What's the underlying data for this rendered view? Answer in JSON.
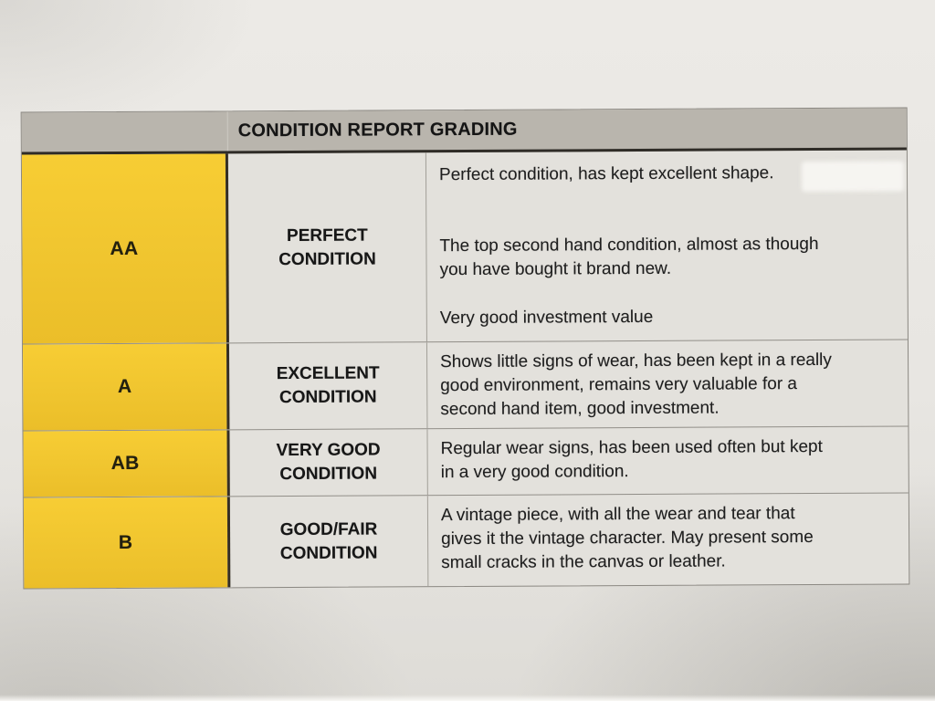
{
  "table": {
    "title": "CONDITION REPORT GRADING",
    "rows": [
      {
        "grade": "AA",
        "condition": "PERFECT\nCONDITION",
        "paragraphs": [
          "Perfect condition, has kept excellent shape.",
          "The top second hand condition, almost as though\nyou have bought it brand new.",
          "Very good investment value"
        ]
      },
      {
        "grade": "A",
        "condition": "EXCELLENT\nCONDITION",
        "paragraphs": [
          "Shows little signs of wear, has been kept in a really\ngood environment, remains very valuable for a\nsecond hand item, good investment."
        ]
      },
      {
        "grade": "AB",
        "condition": "VERY GOOD\nCONDITION",
        "paragraphs": [
          "Regular wear signs, has been used often but kept\nin a very good condition."
        ]
      },
      {
        "grade": "B",
        "condition": "GOOD/FAIR\nCONDITION",
        "paragraphs": [
          "A vintage piece, with all the wear and tear that\ngives it the vintage character. May present some\nsmall cracks in the canvas or leather."
        ]
      }
    ],
    "colors": {
      "yellow": "#F0C52F",
      "header_bg": "#B9B5AD",
      "cell_bg": "#E3E1DC",
      "page_bg": "#E9E7E3",
      "text": "#1C1C1C",
      "line_dark": "#2F2C27",
      "line_light": "#918E88"
    }
  }
}
